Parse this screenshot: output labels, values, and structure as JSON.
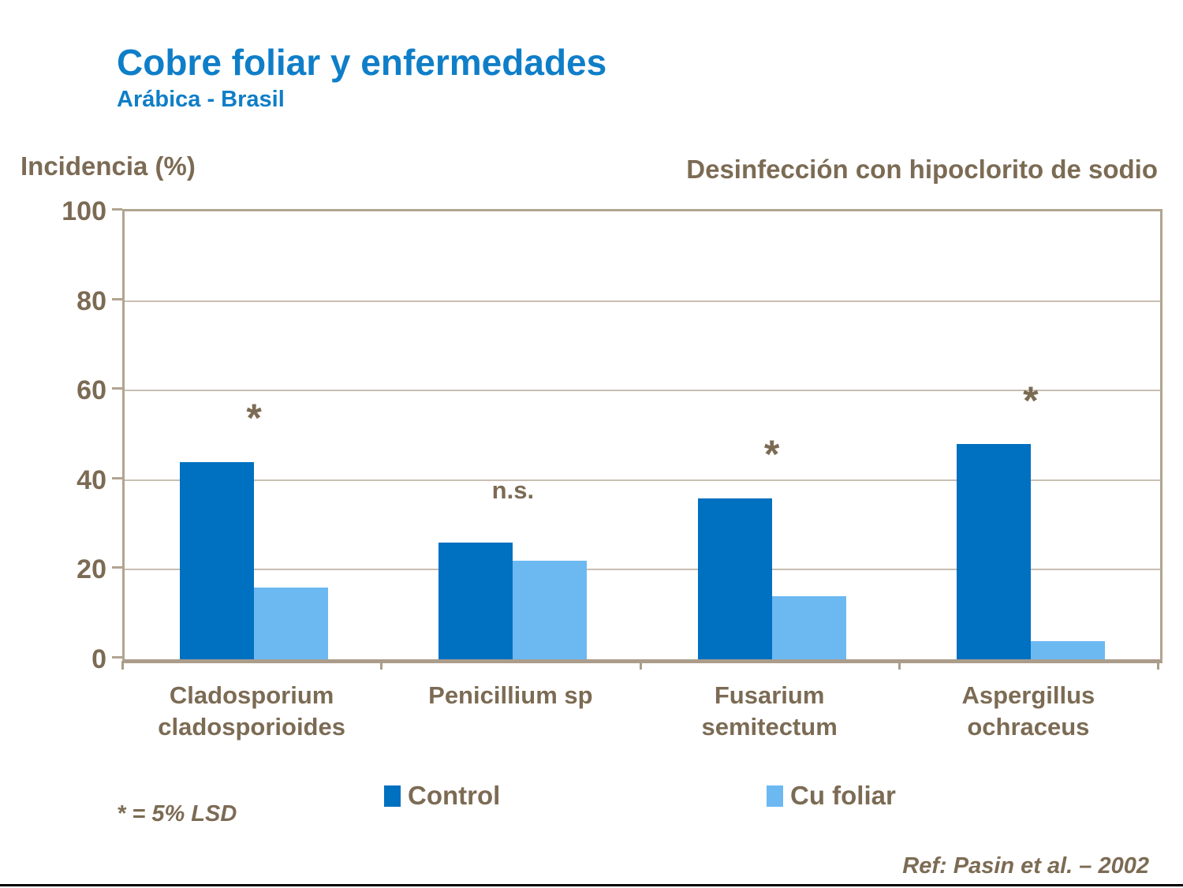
{
  "page": {
    "title": "Cobre foliar y enfermedades",
    "subtitle": "Arábica - Brasil",
    "footnote": "* = 5% LSD",
    "reference": "Ref: Pasin et al. – 2002"
  },
  "chart_data": {
    "type": "bar",
    "title": "Cobre foliar y enfermedades — Arábica - Brasil",
    "ylabel": "Incidencia (%)",
    "subtitle_right": "Desinfección con hipoclorito de sodio",
    "categories": [
      "Cladosporium cladosporioides",
      "Penicillium sp",
      "Fusarium semitectum",
      "Aspergillus ochraceus"
    ],
    "category_label_lines": [
      [
        "Cladosporium",
        "cladosporioides"
      ],
      [
        "Penicillium sp"
      ],
      [
        "Fusarium",
        "semitectum"
      ],
      [
        "Aspergillus",
        "ochraceus"
      ]
    ],
    "series": [
      {
        "name": "Control",
        "color": "#0070C0",
        "values": [
          44,
          26,
          36,
          48
        ]
      },
      {
        "name": "Cu foliar",
        "color": "#6CB9F2",
        "values": [
          16,
          22,
          14,
          4
        ]
      }
    ],
    "significance": [
      {
        "label": "*",
        "y": 57
      },
      {
        "label": "n.s.",
        "y": 39
      },
      {
        "label": "*",
        "y": 49
      },
      {
        "label": "*",
        "y": 61
      }
    ],
    "ylim": [
      0,
      100
    ],
    "yticks": [
      0,
      20,
      40,
      60,
      80,
      100
    ],
    "grid": true,
    "legend_position": "bottom",
    "colors": {
      "title_blue": "#0F7EC8",
      "text_brown": "#7C6B54",
      "axis_border": "#B2A491",
      "axis_baseline": "#AB9D8B",
      "gridline": "#C8BFB2",
      "bottom_rule": "#000000",
      "background": "#FFFFFF"
    }
  }
}
